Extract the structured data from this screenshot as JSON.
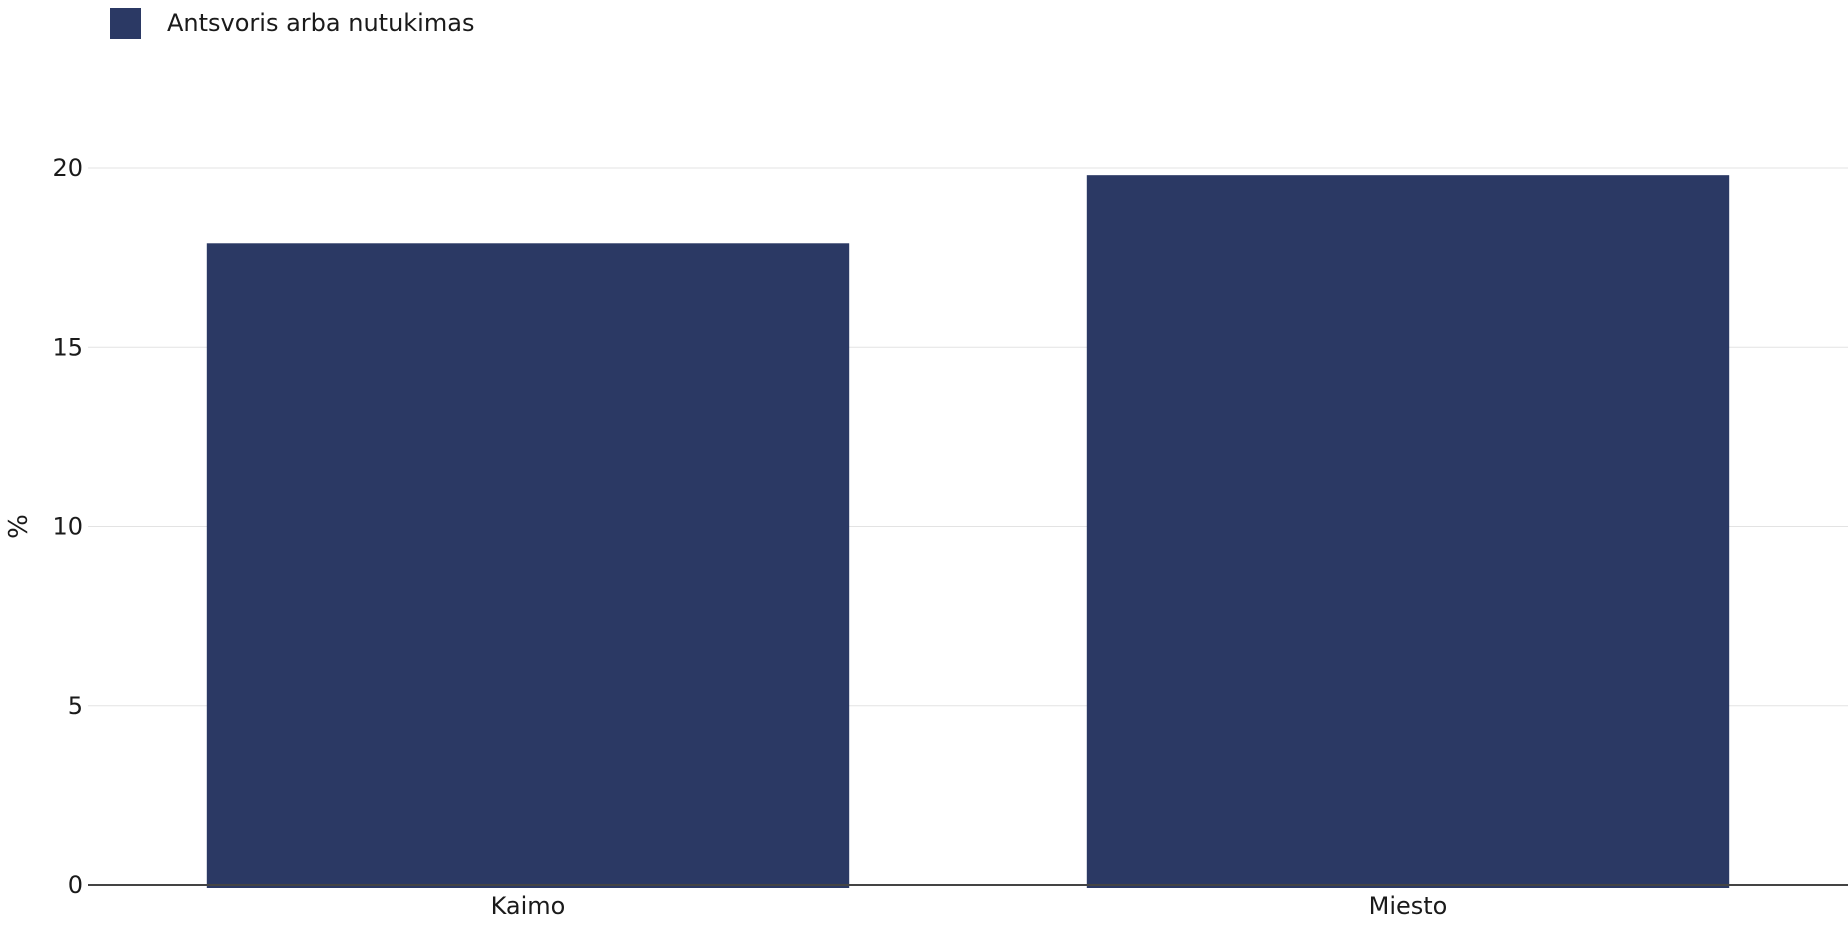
{
  "chart_data": {
    "type": "bar",
    "categories": [
      "Kaimo",
      "Miesto"
    ],
    "series": [
      {
        "name": "Antsvoris arba nutukimas",
        "values": [
          17.9,
          19.8
        ],
        "color": "#2b3964"
      }
    ],
    "xlabel": "",
    "ylabel": "%",
    "ylim": [
      0,
      20
    ],
    "yticks": [
      0,
      5,
      10,
      15,
      20
    ],
    "grid": true,
    "legend_position": "top-left"
  }
}
